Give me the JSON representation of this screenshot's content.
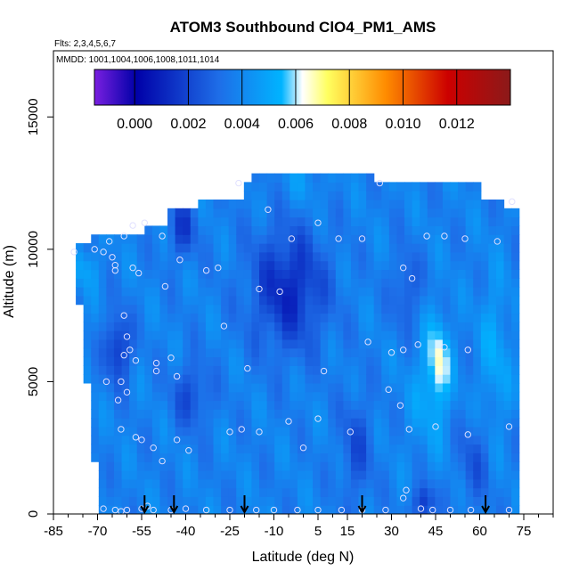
{
  "chart_data": {
    "type": "heatmap",
    "title": "ATOM3 Southbound ClO4_PM1_AMS",
    "subtitle_flights": "Flts: 2,3,4,5,6,7",
    "subtitle_dates": "MMDD: 1001,1004,1006,1008,1011,1014",
    "xlabel": "Latitude (deg N)",
    "ylabel": "Altitude (m)",
    "xlim": [
      -85,
      85
    ],
    "ylim": [
      0,
      17500
    ],
    "x_ticks": [
      -85,
      -70,
      -55,
      -40,
      -25,
      -10,
      5,
      15,
      30,
      45,
      60,
      75
    ],
    "x_tick_labels": [
      "-85",
      "-70",
      "-55",
      "-40",
      "-25",
      "-10",
      "5",
      "15",
      "30",
      "45",
      "60",
      "75"
    ],
    "y_ticks": [
      0,
      5000,
      10000,
      15000
    ],
    "y_tick_labels": [
      "0",
      "5000",
      "10000",
      "15000"
    ],
    "colorbar": {
      "range": [
        -0.0015,
        0.014
      ],
      "ticks": [
        0.0,
        0.002,
        0.004,
        0.006,
        0.008,
        0.01,
        0.012
      ],
      "tick_labels": [
        "0.000",
        "0.002",
        "0.004",
        "0.006",
        "0.008",
        "0.010",
        "0.012"
      ],
      "colors": [
        "#7a1fe0",
        "#0000a8",
        "#1e6ee8",
        "#00b4ff",
        "#ffffff",
        "#ffff60",
        "#ff8c00",
        "#cc0000",
        "#8b1a1a"
      ],
      "stops": [
        0.0,
        0.1,
        0.3,
        0.45,
        0.5,
        0.56,
        0.7,
        0.85,
        1.0
      ]
    },
    "arrows_latitude": [
      -54,
      -44,
      -20,
      20,
      62
    ],
    "sample_points": [
      [
        -78,
        9900
      ],
      [
        -71,
        10000
      ],
      [
        -68,
        9900
      ],
      [
        -66,
        10300
      ],
      [
        -65,
        9700
      ],
      [
        -64,
        9200
      ],
      [
        -61,
        10500
      ],
      [
        -58,
        10900
      ],
      [
        -54,
        11000
      ],
      [
        -48,
        10500
      ],
      [
        -42,
        9600
      ],
      [
        -33,
        9200
      ],
      [
        -29,
        9300
      ],
      [
        -22,
        12500
      ],
      [
        -12,
        11500
      ],
      [
        -4,
        10400
      ],
      [
        5,
        11000
      ],
      [
        12,
        10400
      ],
      [
        20,
        10400
      ],
      [
        26,
        12500
      ],
      [
        34,
        9300
      ],
      [
        37,
        8900
      ],
      [
        42,
        10500
      ],
      [
        48,
        10500
      ],
      [
        55,
        10400
      ],
      [
        66,
        10300
      ],
      [
        71,
        11800
      ],
      [
        -64,
        9400
      ],
      [
        -58,
        9300
      ],
      [
        -56,
        9100
      ],
      [
        -47,
        8600
      ],
      [
        -15,
        8500
      ],
      [
        -8,
        8400
      ],
      [
        -61,
        7500
      ],
      [
        -27,
        7100
      ],
      [
        -60,
        6700
      ],
      [
        -59,
        6200
      ],
      [
        -61,
        6000
      ],
      [
        -57,
        5800
      ],
      [
        -50,
        5700
      ],
      [
        -45,
        5900
      ],
      [
        -50,
        5400
      ],
      [
        -43,
        5200
      ],
      [
        -19,
        5500
      ],
      [
        7,
        5400
      ],
      [
        22,
        6500
      ],
      [
        34,
        6200
      ],
      [
        39,
        6400
      ],
      [
        30,
        6100
      ],
      [
        48,
        6300
      ],
      [
        56,
        6200
      ],
      [
        -67,
        5000
      ],
      [
        -62,
        5000
      ],
      [
        -63,
        4300
      ],
      [
        -60,
        4600
      ],
      [
        -62,
        3200
      ],
      [
        -55,
        2800
      ],
      [
        -57,
        2900
      ],
      [
        -51,
        2500
      ],
      [
        -48,
        2000
      ],
      [
        -43,
        2800
      ],
      [
        -39,
        2400
      ],
      [
        -25,
        3100
      ],
      [
        -21,
        3200
      ],
      [
        -15,
        3100
      ],
      [
        -5,
        3500
      ],
      [
        0,
        2500
      ],
      [
        5,
        3600
      ],
      [
        16,
        3100
      ],
      [
        29,
        4700
      ],
      [
        33,
        4100
      ],
      [
        36,
        3200
      ],
      [
        45,
        3300
      ],
      [
        56,
        3000
      ],
      [
        70,
        3300
      ],
      [
        -68,
        200
      ],
      [
        -64,
        150
      ],
      [
        -62,
        100
      ],
      [
        -60,
        150
      ],
      [
        -55,
        200
      ],
      [
        -53,
        300
      ],
      [
        -51,
        150
      ],
      [
        -45,
        150
      ],
      [
        -40,
        200
      ],
      [
        -33,
        150
      ],
      [
        -25,
        150
      ],
      [
        -16,
        150
      ],
      [
        -10,
        150
      ],
      [
        -2,
        150
      ],
      [
        5,
        150
      ],
      [
        13,
        150
      ],
      [
        20,
        150
      ],
      [
        28,
        150
      ],
      [
        34,
        600
      ],
      [
        35,
        900
      ],
      [
        40,
        200
      ],
      [
        44,
        150
      ],
      [
        50,
        150
      ],
      [
        57,
        150
      ],
      [
        70,
        150
      ]
    ]
  }
}
